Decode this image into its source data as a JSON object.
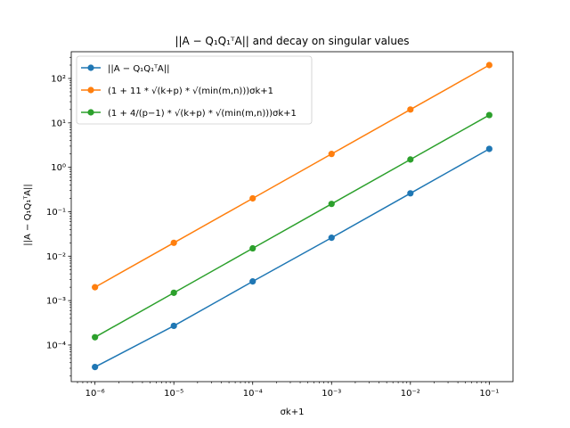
{
  "chart_data": {
    "type": "line",
    "title": "||A − Q₁Q₁ᵀA|| and decay on singular values",
    "xlabel": "σk+1",
    "ylabel": "||A − Q₁Q₁ᵀA||",
    "xscale": "log",
    "yscale": "log",
    "xlim": [
      5e-07,
      0.2
    ],
    "ylim": [
      1.5e-05,
      400.0
    ],
    "x": [
      1e-06,
      1e-05,
      0.0001,
      0.001,
      0.01,
      0.1
    ],
    "x_tick_labels": [
      "10⁻⁶",
      "10⁻⁵",
      "10⁻⁴",
      "10⁻³",
      "10⁻²",
      "10⁻¹"
    ],
    "y_ticks": [
      0.0001,
      0.001,
      0.01,
      0.1,
      1.0,
      10.0,
      100.0
    ],
    "y_tick_labels": [
      "10⁻⁴",
      "10⁻³",
      "10⁻²",
      "10⁻¹",
      "10⁰",
      "10¹",
      "10²"
    ],
    "grid": false,
    "legend_position": "top-left",
    "series": [
      {
        "name": "||A − Q₁Q₁ᵀA||",
        "color": "#1f77b4",
        "values": [
          3.2e-05,
          0.00027,
          0.0027,
          0.026,
          0.26,
          2.6
        ]
      },
      {
        "name": "(1 + 11 * √(k+p) * √(min(m,n)))σk+1",
        "color": "#ff7f0e",
        "values": [
          0.002,
          0.02,
          0.2,
          2,
          20,
          200
        ]
      },
      {
        "name": "(1 + 4/(p−1) * √(k+p) * √(min(m,n)))σk+1",
        "color": "#2ca02c",
        "values": [
          0.00015,
          0.0015,
          0.015,
          0.15,
          1.5,
          15
        ]
      }
    ]
  }
}
